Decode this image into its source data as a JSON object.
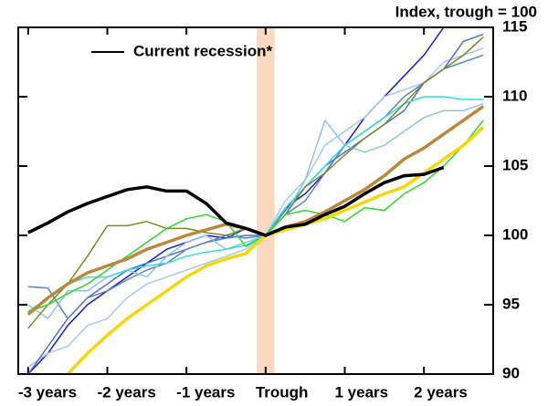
{
  "chart_data": {
    "type": "line",
    "y_axis_label": "Index, trough = 100",
    "x": [
      -12,
      -11,
      -10,
      -9,
      -8,
      -7,
      -6,
      -5,
      -4,
      -3,
      -2,
      -1,
      0,
      1,
      2,
      3,
      4,
      5,
      6,
      7,
      8,
      9,
      10,
      11
    ],
    "xlim": [
      -12.5,
      11.5
    ],
    "xticks": [
      {
        "value": -12,
        "label": "-3 years"
      },
      {
        "value": -8,
        "label": "-2 years"
      },
      {
        "value": -4,
        "label": "-1 years"
      },
      {
        "value": 0,
        "label": "Trough"
      },
      {
        "value": 4,
        "label": "1 years"
      },
      {
        "value": 8,
        "label": "2 years"
      }
    ],
    "ylim": [
      90,
      115
    ],
    "yticks": [
      90,
      95,
      100,
      105,
      110,
      115
    ],
    "shaded_x": 0,
    "shade_color": "#f9d9bf",
    "legend": "upper left",
    "series": [
      {
        "color": "#1a1ad0",
        "width": 1.5,
        "values": [
          90,
          91.5,
          93.5,
          95,
          96,
          97,
          98,
          99,
          99.5,
          100,
          99.8,
          100.5,
          100,
          102,
          103,
          104.5,
          106.5,
          108.5,
          110,
          111.5,
          113,
          115,
          null,
          null
        ]
      },
      {
        "color": "#a9c8e8",
        "width": 1.5,
        "values": [
          90.5,
          91.5,
          92,
          93.5,
          94,
          95.5,
          96.5,
          97,
          97.5,
          98,
          98.5,
          99,
          100,
          102.5,
          104,
          106.5,
          107.5,
          108.5,
          110,
          110.5,
          111,
          112.5,
          113,
          113.5
        ]
      },
      {
        "color": "#4f6fd8",
        "width": 1.5,
        "values": [
          90,
          92,
          94,
          95.5,
          96.5,
          97.5,
          98,
          98.5,
          99,
          99.5,
          99.8,
          100,
          100,
          101.8,
          103.5,
          105,
          106,
          107,
          108,
          109,
          111,
          112,
          114,
          114.5
        ]
      },
      {
        "color": "#5b86b8",
        "width": 1.5,
        "values": [
          96.3,
          96.2,
          94,
          95.5,
          96,
          96.8,
          97.5,
          98,
          99,
          99.5,
          100,
          99.8,
          100,
          101.5,
          102.5,
          104.5,
          106.5,
          107.5,
          108.5,
          110,
          111,
          112,
          112.5,
          113
        ]
      },
      {
        "color": "#8ec3e6",
        "width": 1.5,
        "values": [
          95,
          94,
          96,
          96,
          97,
          97.5,
          97,
          98.5,
          99.5,
          100,
          99,
          99.5,
          100,
          101.5,
          104,
          108.3,
          106.5,
          106,
          106.5,
          107.5,
          108.5,
          109,
          109,
          109.5
        ]
      },
      {
        "color": "#30e0d8",
        "width": 1.5,
        "values": [
          94.5,
          95.5,
          96.5,
          97,
          97,
          97.5,
          97.8,
          98,
          98.5,
          98.8,
          99,
          99.3,
          100,
          102,
          103.5,
          105,
          106.5,
          107.5,
          108.5,
          109.5,
          110,
          110,
          109.8,
          109.8
        ]
      },
      {
        "color": "#7a8a2a",
        "width": 1.5,
        "values": [
          93.3,
          95,
          96.5,
          98.5,
          100.7,
          100.7,
          101,
          100.5,
          100.5,
          100.2,
          100,
          100.5,
          100,
          101.5,
          103.5,
          104.5,
          105.8,
          107,
          108,
          109.5,
          111,
          112,
          113,
          114.3
        ]
      },
      {
        "color": "#2ed82e",
        "width": 1.5,
        "values": [
          94.5,
          95,
          95.8,
          96.5,
          97.5,
          98.5,
          99.5,
          100.5,
          101.2,
          101.5,
          101,
          99.2,
          100,
          101.5,
          101.8,
          101.5,
          101,
          102,
          101.8,
          103,
          103.8,
          105,
          106.5,
          108.3
        ]
      },
      {
        "color": "#f5d80a",
        "width": 3.5,
        "values": [
          null,
          null,
          90,
          91.5,
          92.8,
          94,
          95,
          96,
          97,
          97.8,
          98.3,
          98.7,
          100,
          100.4,
          100.8,
          101.2,
          101.8,
          102.4,
          103,
          103.5,
          104.5,
          105.5,
          106.5,
          107.8
        ]
      },
      {
        "color": "#b8893a",
        "width": 3.5,
        "values": [
          94.3,
          95.5,
          96.5,
          97.3,
          97.8,
          98.3,
          99,
          99.5,
          100,
          100.4,
          100.8,
          100.5,
          100,
          100.6,
          101,
          101.7,
          102.5,
          103.3,
          104.3,
          105.5,
          106.3,
          107.3,
          108.3,
          109.3
        ]
      },
      {
        "name": "Current recession*",
        "color": "#000000",
        "width": 3.5,
        "values": [
          100.2,
          100.9,
          101.7,
          102.3,
          102.8,
          103.3,
          103.5,
          103.2,
          103.2,
          102.3,
          100.9,
          100.5,
          100,
          100.6,
          100.8,
          101.5,
          102.1,
          103,
          103.8,
          104.3,
          104.4,
          104.9,
          null,
          null
        ]
      }
    ]
  }
}
